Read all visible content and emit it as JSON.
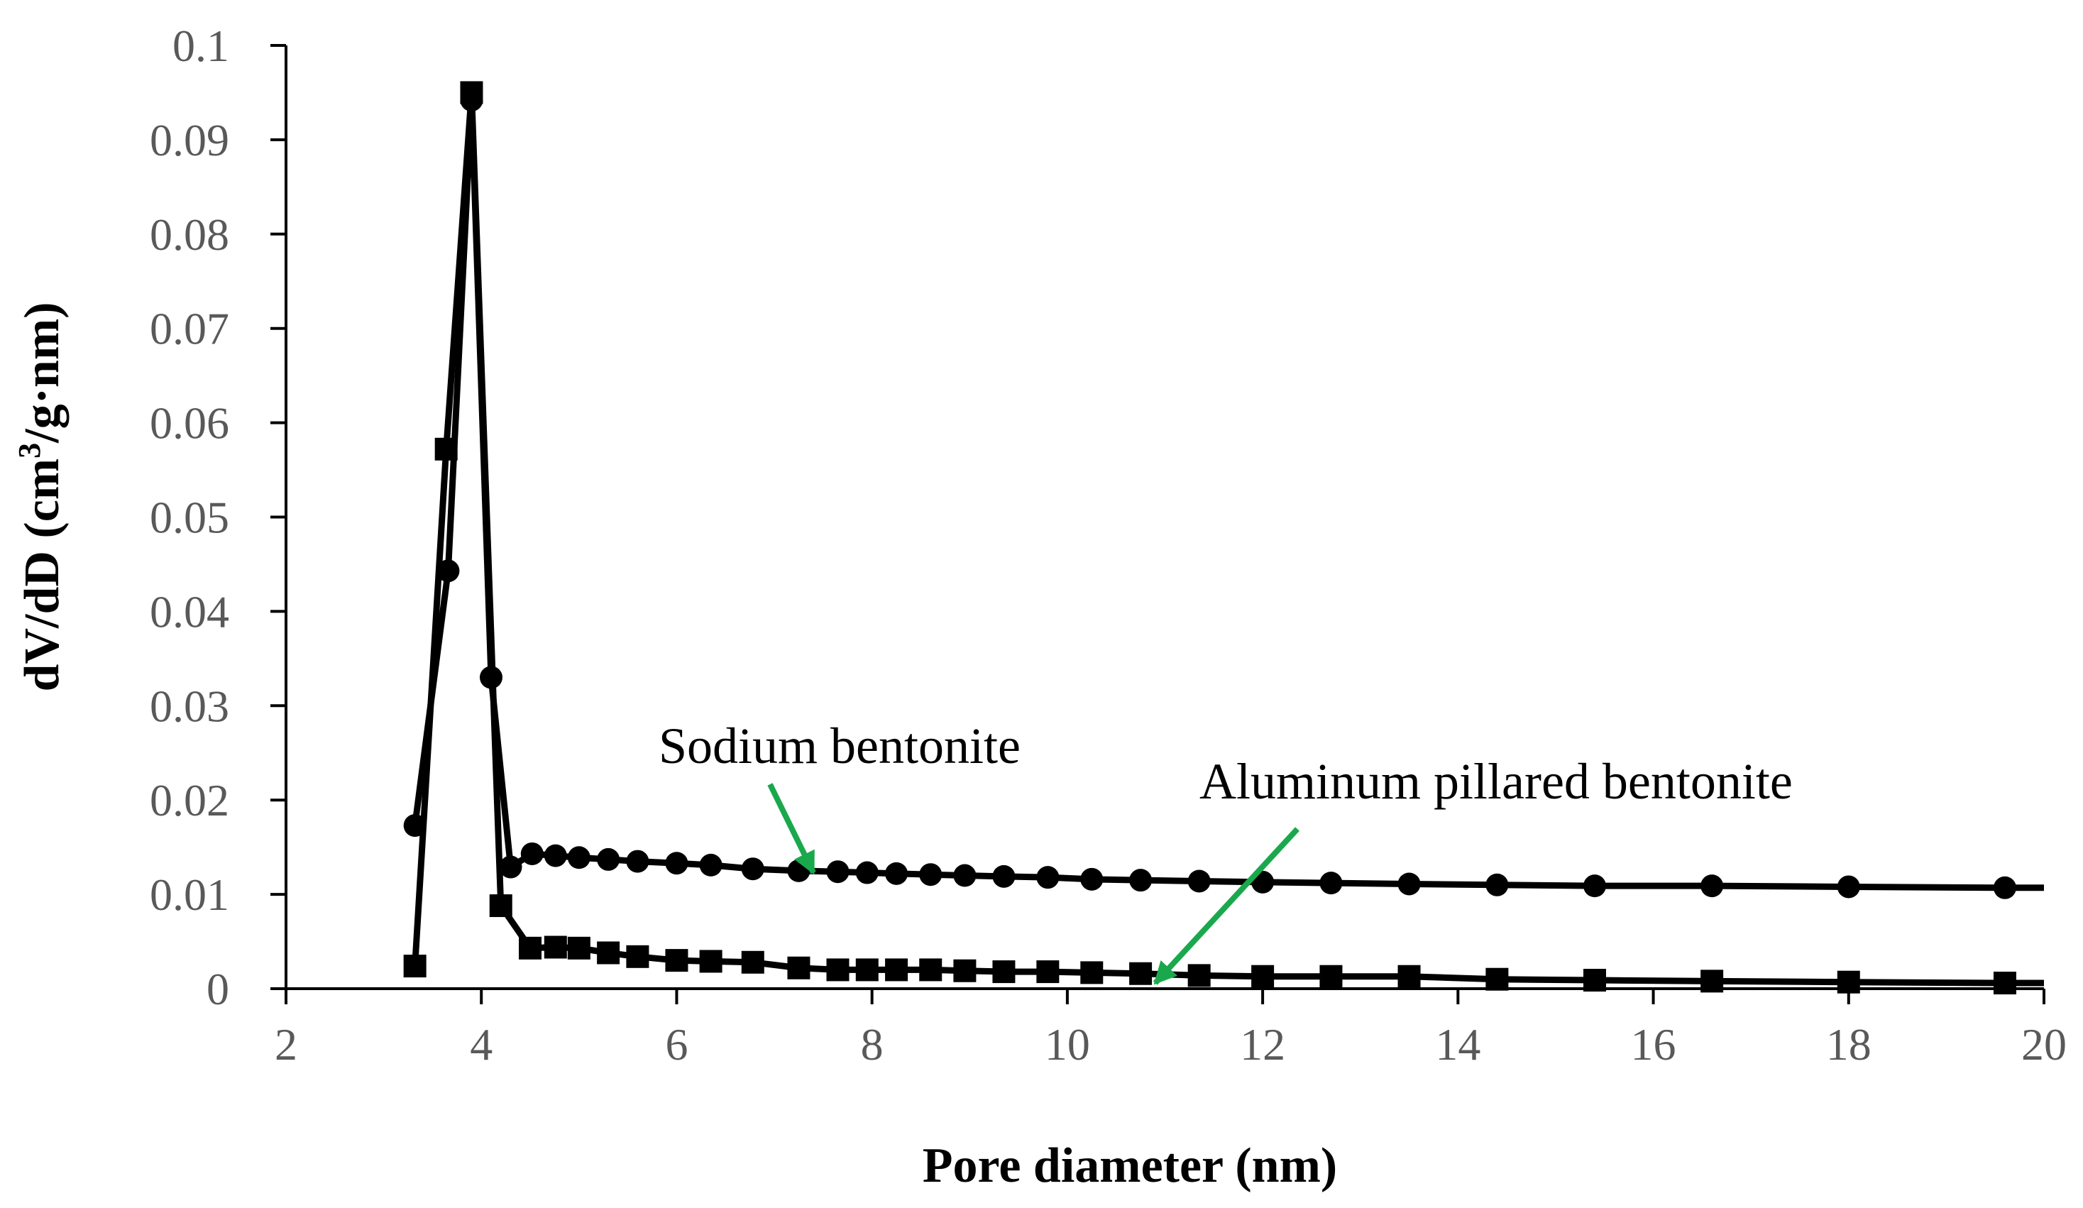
{
  "chart_data": {
    "type": "line",
    "title": "",
    "xlabel": "Pore diameter (nm)",
    "ylabel_main": "dV/dD (cm",
    "ylabel_sup": "3",
    "ylabel_tail": "/g·nm)",
    "xlim": [
      2,
      20
    ],
    "ylim": [
      0,
      0.1
    ],
    "xticks": [
      "2",
      "4",
      "6",
      "8",
      "10",
      "12",
      "14",
      "16",
      "18",
      "20"
    ],
    "yticks": [
      "0",
      "0.01",
      "0.02",
      "0.03",
      "0.04",
      "0.05",
      "0.06",
      "0.07",
      "0.08",
      "0.09",
      "0.1"
    ],
    "grid": false,
    "legend": "none",
    "series": [
      {
        "name": "Sodium bentonite",
        "marker": "circle",
        "color": "#000000",
        "x": [
          3.32,
          3.66,
          3.9,
          4.1,
          4.3,
          4.52,
          4.76,
          5.0,
          5.3,
          5.6,
          6.0,
          6.35,
          6.78,
          7.25,
          7.65,
          7.95,
          8.25,
          8.6,
          8.95,
          9.35,
          9.8,
          10.25,
          10.75,
          11.35,
          12.0,
          12.7,
          13.5,
          14.4,
          15.4,
          16.6,
          18.0,
          19.6,
          20.0
        ],
        "y": [
          0.0173,
          0.0443,
          0.0942,
          0.033,
          0.0129,
          0.0143,
          0.0141,
          0.0139,
          0.0137,
          0.0135,
          0.0133,
          0.0131,
          0.0127,
          0.0125,
          0.0124,
          0.0123,
          0.0122,
          0.0121,
          0.012,
          0.0119,
          0.0118,
          0.0116,
          0.0115,
          0.0114,
          0.0113,
          0.0112,
          0.0111,
          0.011,
          0.0109,
          0.0109,
          0.0108,
          0.0107,
          0.0107
        ]
      },
      {
        "name": "Aluminum pillared bentonite",
        "marker": "square",
        "color": "#000000",
        "x": [
          3.32,
          3.64,
          3.9,
          4.2,
          4.5,
          4.76,
          5.0,
          5.3,
          5.6,
          6.0,
          6.35,
          6.78,
          7.25,
          7.65,
          7.95,
          8.25,
          8.6,
          8.95,
          9.35,
          9.8,
          10.25,
          10.75,
          11.35,
          12.0,
          12.7,
          13.5,
          14.4,
          15.4,
          16.6,
          18.0,
          19.6,
          20.0
        ],
        "y": [
          0.0024,
          0.0572,
          0.095,
          0.0088,
          0.0043,
          0.0044,
          0.0043,
          0.0038,
          0.0034,
          0.003,
          0.0029,
          0.0028,
          0.0022,
          0.002,
          0.002,
          0.002,
          0.002,
          0.0019,
          0.0018,
          0.0018,
          0.0017,
          0.0016,
          0.0014,
          0.0013,
          0.0013,
          0.0013,
          0.001,
          0.0009,
          0.0008,
          0.0007,
          0.0006,
          0.0006
        ]
      }
    ],
    "annotations": [
      {
        "text": "Sodium bentonite",
        "arrow_color": "#1aa84d",
        "target": [
          7.4,
          0.0123
        ]
      },
      {
        "text": "Aluminum pillared bentonite",
        "arrow_color": "#1aa84d",
        "target": [
          10.9,
          0.0006
        ]
      }
    ]
  }
}
